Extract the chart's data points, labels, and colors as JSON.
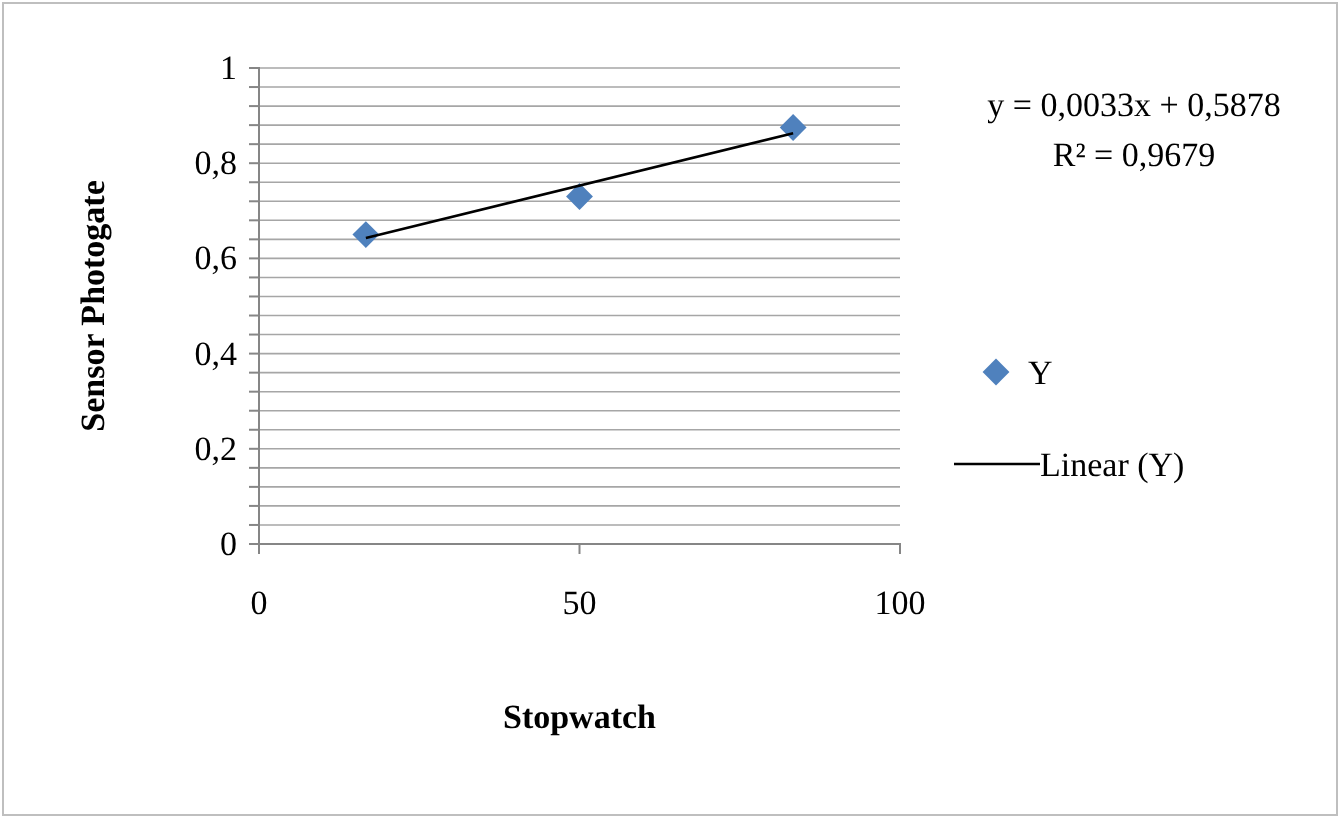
{
  "chart_data": {
    "type": "scatter",
    "xlabel": "Stopwatch",
    "ylabel": "Sensor Photogate",
    "xlim": [
      0,
      100
    ],
    "xticks": [
      0,
      50,
      100
    ],
    "ylim": [
      0,
      1
    ],
    "yticks": [
      0,
      {
        "value": 0.04,
        "label": null
      },
      {
        "value": 0.08,
        "label": null
      },
      {
        "value": 0.12,
        "label": null
      },
      {
        "value": 0.16,
        "label": null
      },
      {
        "value": 0.2,
        "label": "0,2"
      },
      {
        "value": 0.24,
        "label": null
      },
      {
        "value": 0.28,
        "label": null
      },
      {
        "value": 0.32,
        "label": null
      },
      {
        "value": 0.36,
        "label": null
      },
      {
        "value": 0.4,
        "label": "0,4"
      },
      {
        "value": 0.44,
        "label": null
      },
      {
        "value": 0.48,
        "label": null
      },
      {
        "value": 0.52,
        "label": null
      },
      {
        "value": 0.56,
        "label": null
      },
      {
        "value": 0.6,
        "label": "0,6"
      },
      {
        "value": 0.64,
        "label": null
      },
      {
        "value": 0.68,
        "label": null
      },
      {
        "value": 0.72,
        "label": null
      },
      {
        "value": 0.76,
        "label": null
      },
      {
        "value": 0.8,
        "label": "0,8"
      },
      {
        "value": 0.84,
        "label": null
      },
      {
        "value": 0.88,
        "label": null
      },
      {
        "value": 0.92,
        "label": null
      },
      {
        "value": 0.96,
        "label": null
      },
      1
    ],
    "grid": "y",
    "legend": "right",
    "series": [
      {
        "name": "Y",
        "marker": "diamond",
        "color": "#4f81bd",
        "x": [
          16.67,
          50,
          83.33
        ],
        "values": [
          0.65,
          0.73,
          0.875
        ]
      },
      {
        "name": "Linear (Y)",
        "type": "line",
        "color": "#000000",
        "x": [
          16.67,
          83.33
        ],
        "values": [
          0.643,
          0.863
        ]
      }
    ],
    "annotations": [
      "y = 0,0033x + 0,5878",
      "R² = 0,9679"
    ]
  }
}
